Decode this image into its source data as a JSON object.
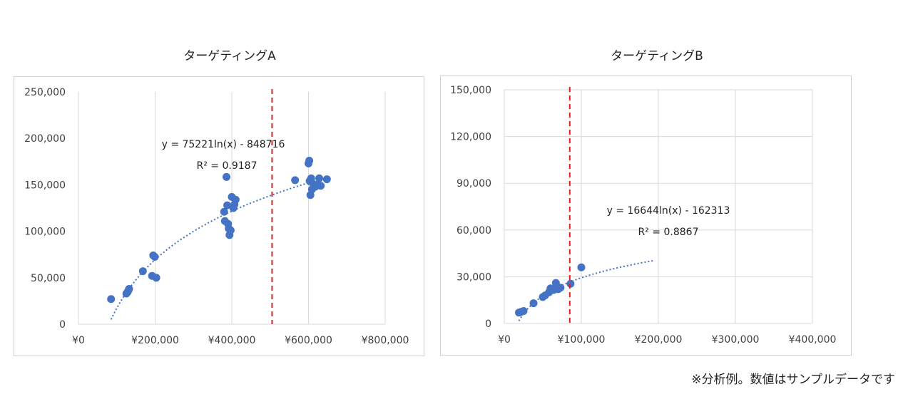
{
  "footnote": "※分析例。数値はサンプルデータです",
  "chart_data": [
    {
      "type": "scatter",
      "title": "ターゲティングA",
      "xlabel": "",
      "ylabel": "",
      "xlim": [
        0,
        800000
      ],
      "ylim": [
        0,
        250000
      ],
      "x_ticks": [
        0,
        200000,
        400000,
        600000,
        800000
      ],
      "x_tick_labels": [
        "¥0",
        "¥200,000",
        "¥400,000",
        "¥600,000",
        "¥800,000"
      ],
      "y_ticks": [
        0,
        50000,
        100000,
        150000,
        200000,
        250000
      ],
      "y_tick_labels": [
        "0",
        "50,000",
        "100,000",
        "150,000",
        "200,000",
        "250,000"
      ],
      "grid": "vertical",
      "point_color": "#4472C4",
      "points": [
        {
          "x": 85000,
          "y": 27000
        },
        {
          "x": 125000,
          "y": 33000
        },
        {
          "x": 128000,
          "y": 34500
        },
        {
          "x": 130000,
          "y": 36000
        },
        {
          "x": 132000,
          "y": 38000
        },
        {
          "x": 168000,
          "y": 57000
        },
        {
          "x": 192000,
          "y": 52000
        },
        {
          "x": 195000,
          "y": 74000
        },
        {
          "x": 199000,
          "y": 72500
        },
        {
          "x": 203000,
          "y": 50000
        },
        {
          "x": 380000,
          "y": 121000
        },
        {
          "x": 382000,
          "y": 111000
        },
        {
          "x": 386000,
          "y": 158500
        },
        {
          "x": 388000,
          "y": 128000
        },
        {
          "x": 390000,
          "y": 108000
        },
        {
          "x": 392000,
          "y": 103000
        },
        {
          "x": 394000,
          "y": 96000
        },
        {
          "x": 397000,
          "y": 101000
        },
        {
          "x": 400000,
          "y": 137000
        },
        {
          "x": 404000,
          "y": 125000
        },
        {
          "x": 407000,
          "y": 129000
        },
        {
          "x": 410000,
          "y": 134000
        },
        {
          "x": 565000,
          "y": 155000
        },
        {
          "x": 600000,
          "y": 173000
        },
        {
          "x": 602000,
          "y": 176000
        },
        {
          "x": 603000,
          "y": 154000
        },
        {
          "x": 605000,
          "y": 139000
        },
        {
          "x": 607000,
          "y": 157000
        },
        {
          "x": 609000,
          "y": 145000
        },
        {
          "x": 612000,
          "y": 151000
        },
        {
          "x": 618000,
          "y": 148000
        },
        {
          "x": 622000,
          "y": 150000
        },
        {
          "x": 628000,
          "y": 157000
        },
        {
          "x": 632000,
          "y": 149000
        },
        {
          "x": 648000,
          "y": 156000
        }
      ],
      "trendline": {
        "type": "logarithmic",
        "a": 75221,
        "b": -848716,
        "x_from": 85000,
        "x_to": 650000,
        "color": "#4472C4"
      },
      "equation_label": "y = 75221ln(x) - 848716",
      "r2_label": "R² = 0.9187",
      "reference_line": {
        "x": 505000,
        "color": "#E02020",
        "style": "dashed"
      }
    },
    {
      "type": "scatter",
      "title": "ターゲティングB",
      "xlabel": "",
      "ylabel": "",
      "xlim": [
        0,
        400000
      ],
      "ylim": [
        0,
        150000
      ],
      "x_ticks": [
        0,
        100000,
        200000,
        300000,
        400000
      ],
      "x_tick_labels": [
        "¥0",
        "¥100,000",
        "¥200,000",
        "¥300,000",
        "¥400,000"
      ],
      "y_ticks": [
        0,
        30000,
        60000,
        90000,
        120000,
        150000
      ],
      "y_tick_labels": [
        "0",
        "30,000",
        "60,000",
        "90,000",
        "120,000",
        "150,000"
      ],
      "grid": "both",
      "point_color": "#4472C4",
      "points": [
        {
          "x": 19000,
          "y": 7000
        },
        {
          "x": 22000,
          "y": 7500
        },
        {
          "x": 25000,
          "y": 8000
        },
        {
          "x": 38000,
          "y": 13000
        },
        {
          "x": 50000,
          "y": 17000
        },
        {
          "x": 53000,
          "y": 18000
        },
        {
          "x": 58000,
          "y": 20000
        },
        {
          "x": 60000,
          "y": 22500
        },
        {
          "x": 64000,
          "y": 21500
        },
        {
          "x": 67000,
          "y": 26000
        },
        {
          "x": 70000,
          "y": 22000
        },
        {
          "x": 73000,
          "y": 23000
        },
        {
          "x": 86000,
          "y": 25500
        },
        {
          "x": 100000,
          "y": 36000
        }
      ],
      "trendline": {
        "type": "logarithmic",
        "a": 16644,
        "b": -162313,
        "x_from": 19000,
        "x_to": 195000,
        "color": "#4472C4"
      },
      "equation_label": "y = 16644ln(x) - 162313",
      "r2_label": "R² = 0.8867",
      "reference_line": {
        "x": 85000,
        "color": "#E02020",
        "style": "dashed"
      }
    }
  ]
}
